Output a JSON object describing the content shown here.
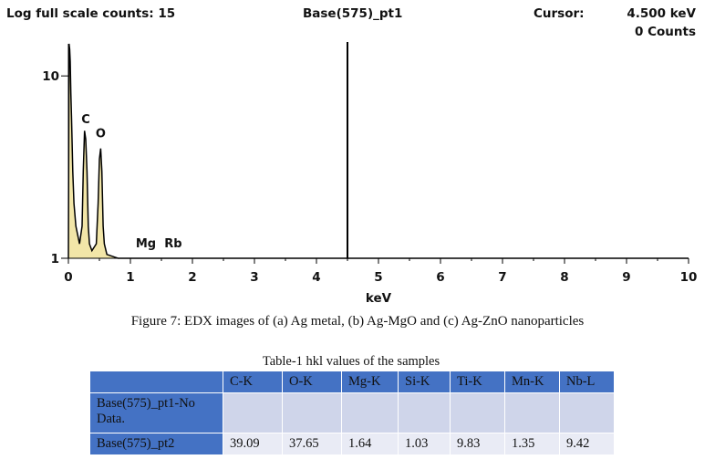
{
  "header": {
    "scale_label": "Log full scale counts: 15",
    "title": "Base(575)_pt1",
    "cursor_label": "Cursor:",
    "cursor_kev": "4.500 keV",
    "cursor_counts": "0 Counts"
  },
  "chart_data": {
    "type": "line",
    "title": "Base(575)_pt1",
    "xlabel": "keV",
    "ylabel": "",
    "xlim": [
      0,
      10
    ],
    "y_scale": "log",
    "ylim": [
      1,
      15
    ],
    "x_ticks": [
      "0",
      "1",
      "2",
      "3",
      "4",
      "5",
      "6",
      "7",
      "8",
      "9",
      "10"
    ],
    "y_ticks": [
      "1",
      "10"
    ],
    "series": [
      {
        "x": [
          0.0,
          0.01,
          0.02,
          0.03,
          0.04,
          0.05,
          0.07,
          0.09,
          0.12,
          0.18,
          0.22,
          0.24,
          0.26,
          0.28,
          0.3,
          0.32,
          0.34,
          0.38,
          0.45,
          0.48,
          0.5,
          0.52,
          0.54,
          0.56,
          0.58,
          0.62,
          0.8,
          1.0,
          10.0
        ],
        "y": [
          1,
          15,
          14,
          12,
          8,
          6,
          3,
          2,
          1.5,
          1.2,
          1.5,
          3,
          5,
          4.5,
          3,
          1.5,
          1.2,
          1.1,
          1.2,
          2,
          3.5,
          4,
          3,
          1.5,
          1.2,
          1.05,
          1,
          1,
          1
        ]
      }
    ],
    "element_labels": [
      {
        "text": "C",
        "x": 0.28,
        "y": 5.5
      },
      {
        "text": "O",
        "x": 0.52,
        "y": 4.6
      },
      {
        "text": "Mg",
        "x": 1.25,
        "y": 1.15
      },
      {
        "text": "Rb",
        "x": 1.69,
        "y": 1.15
      }
    ],
    "cursor_kev": 4.5,
    "colors": {
      "fill": "#f2e6a8",
      "stroke": "#000000",
      "cursor": "#000000"
    }
  },
  "figure_caption": "Figure 7: EDX images of (a) Ag metal, (b) Ag-MgO and (c) Ag-ZnO nanoparticles",
  "table": {
    "caption": "Table-1 hkl values of the samples",
    "columns": [
      "",
      "C-K",
      "O-K",
      "Mg-K",
      "Si-K",
      "Ti-K",
      "Mn-K",
      "Nb-L"
    ],
    "rows": [
      {
        "label": "Base(575)_pt1-No Data.",
        "cells": [
          "",
          "",
          "",
          "",
          "",
          "",
          ""
        ]
      },
      {
        "label": "Base(575)_pt2",
        "cells": [
          "39.09",
          "37.65",
          "1.64",
          "1.03",
          "9.83",
          "1.35",
          "9.42"
        ]
      }
    ]
  }
}
